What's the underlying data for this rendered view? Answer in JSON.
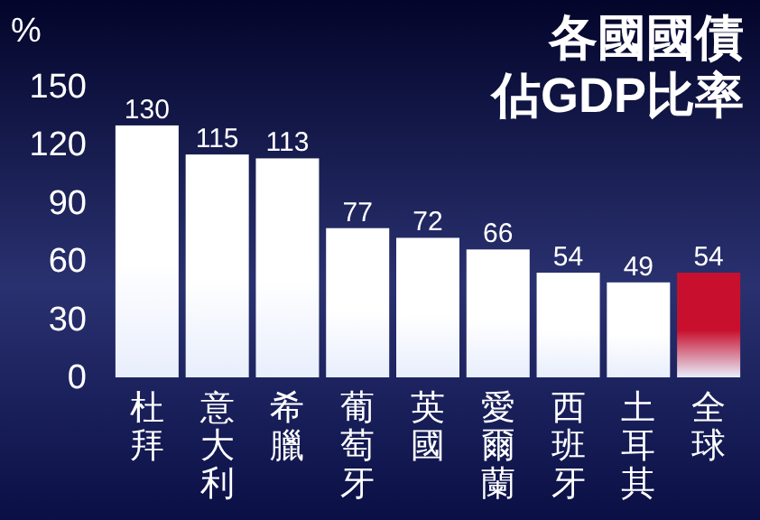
{
  "chart_data": {
    "type": "bar",
    "title": "各國國債",
    "subtitle": "佔GDP比率",
    "ylabel": "%",
    "categories": [
      "杜拜",
      "意大利",
      "希臘",
      "葡萄牙",
      "英國",
      "愛爾蘭",
      "西班牙",
      "土耳其",
      "全球"
    ],
    "values": [
      130,
      115,
      113,
      77,
      72,
      66,
      54,
      49,
      54
    ],
    "colors": [
      "#ffffff",
      "#ffffff",
      "#ffffff",
      "#ffffff",
      "#ffffff",
      "#ffffff",
      "#ffffff",
      "#ffffff",
      "#c8102e"
    ],
    "ylim": [
      0,
      150
    ],
    "yticks": [
      0,
      30,
      60,
      90,
      120,
      150
    ],
    "data_labels": true
  }
}
